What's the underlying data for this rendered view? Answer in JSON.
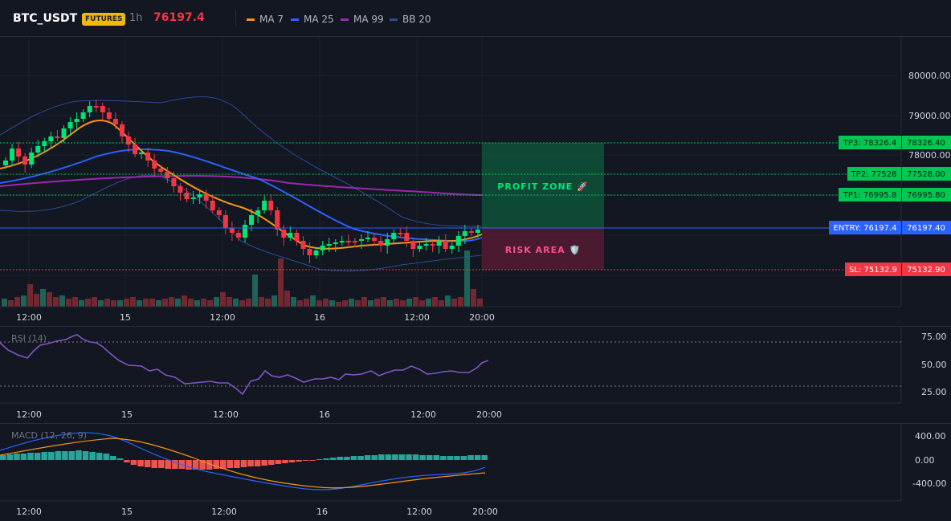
{
  "header": {
    "symbol": "BTC_USDT",
    "badge": "FUTURES",
    "timeframe": "1h",
    "last_price": "76197.4",
    "indicators": [
      {
        "label": "MA 7",
        "color": "#f7931a"
      },
      {
        "label": "MA 25",
        "color": "#2962ff"
      },
      {
        "label": "MA 99",
        "color": "#9c27b0"
      },
      {
        "label": "BB 20",
        "color": "#2a4a9a"
      }
    ]
  },
  "main_chart": {
    "price_axis_ticks": [
      "80000.00",
      "79000.00",
      "78000.00"
    ],
    "time_ticks": [
      "12:00",
      "15",
      "12:00",
      "16",
      "12:00",
      "20:00"
    ],
    "levels": [
      {
        "name": "tp3",
        "tag": "TP3: 78326.4",
        "value": "78326.40",
        "color": "#00c853"
      },
      {
        "name": "tp2",
        "tag": "TP2: 77528",
        "value": "77528.00",
        "color": "#00c853"
      },
      {
        "name": "tp1",
        "tag": "TP1: 76995.8",
        "value": "76995.80",
        "color": "#00c853"
      },
      {
        "name": "entry",
        "tag": "ENTRY: 76197.4",
        "value": "76197.40",
        "color": "#2962ff"
      },
      {
        "name": "sl",
        "tag": "SL: 75132.9",
        "value": "75132.90",
        "color": "#f23645"
      }
    ],
    "profit_zone_label": "PROFIT ZONE 🚀",
    "risk_area_label": "RISK AREA 🛡️"
  },
  "rsi": {
    "label": "RSI (14)",
    "axis_ticks": [
      "75.00",
      "50.00",
      "25.00"
    ],
    "time_ticks": [
      "12:00",
      "15",
      "12:00",
      "16",
      "12:00",
      "20:00"
    ]
  },
  "macd": {
    "label": "MACD (12, 26, 9)",
    "axis_ticks": [
      "400.00",
      "0.00",
      "-400.00"
    ],
    "time_ticks": [
      "12:00",
      "15",
      "12:00",
      "16",
      "12:00",
      "20:00"
    ]
  },
  "colors": {
    "up": "#26a69a",
    "up_bright": "#00e676",
    "down": "#f23645",
    "background": "#131722",
    "rsi_line": "#7e57c2",
    "macd_line": "#2962ff",
    "signal_line": "#f7931a"
  }
}
